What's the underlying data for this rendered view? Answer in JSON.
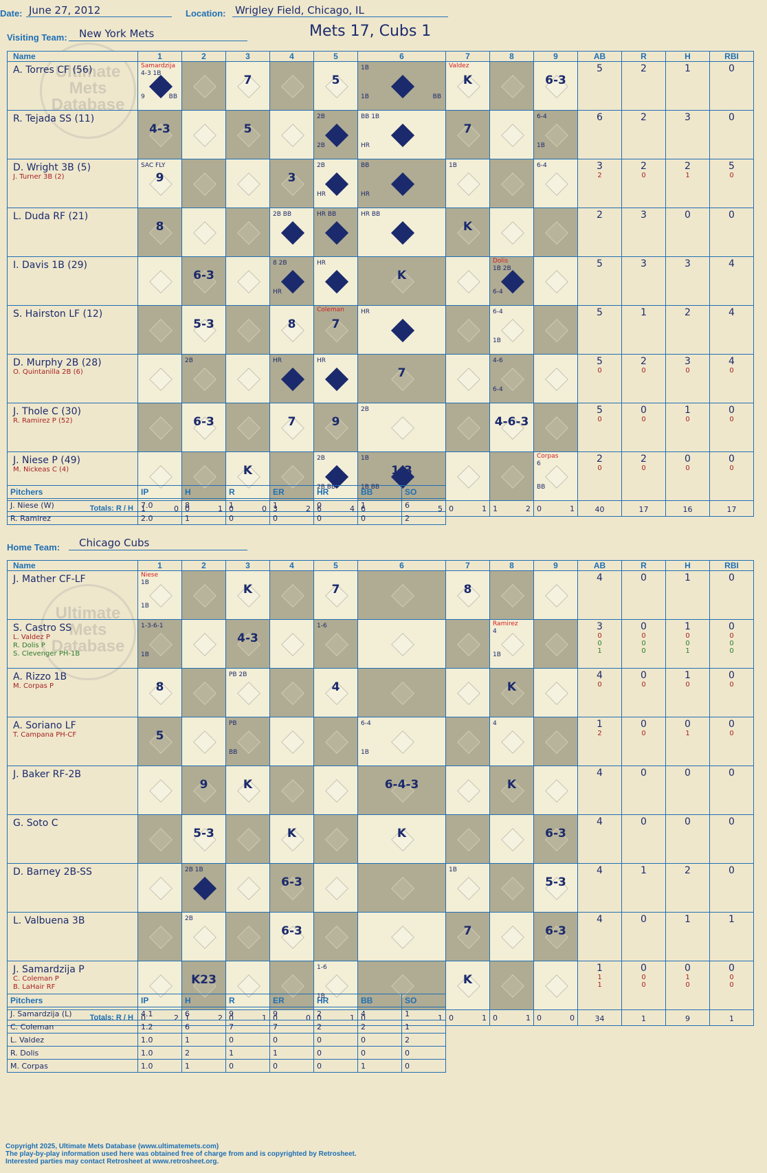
{
  "header": {
    "date_label": "Date:",
    "date": "June 27, 2012",
    "location_label": "Location:",
    "location": "Wrigley Field, Chicago, IL",
    "visiting_label": "Visiting Team:",
    "visiting_team": "New York Mets",
    "home_label": "Home Team:",
    "home_team": "Chicago Cubs",
    "title": "Mets 17, Cubs 1"
  },
  "watermark": "Ultimate Mets Database",
  "columns": {
    "name": "Name",
    "innings": [
      "1",
      "2",
      "3",
      "4",
      "5",
      "6",
      "7",
      "8",
      "9"
    ],
    "stats": [
      "AB",
      "R",
      "H",
      "RBI"
    ]
  },
  "visitors": {
    "lineup": [
      {
        "name": "A. Torres CF (56)",
        "subs": [],
        "ab": [
          "5"
        ],
        "r": [
          "2"
        ],
        "h": [
          "1"
        ],
        "rbi": [
          "0"
        ],
        "cells": [
          {
            "r": "",
            "n": [
              "4-3 1B",
              "9",
              "BB"
            ],
            "red": "Samardzija",
            "run": true
          },
          {},
          {
            "r": "7"
          },
          {},
          {
            "r": "5"
          },
          {
            "r": "",
            "n": [
              "1B",
              "1B",
              "BB"
            ],
            "run": true
          },
          {
            "r": "K",
            "red": "Valdez"
          },
          {},
          {
            "r": "6-3"
          }
        ]
      },
      {
        "name": "R. Tejada SS (11)",
        "subs": [],
        "ab": [
          "6"
        ],
        "r": [
          "2"
        ],
        "h": [
          "3"
        ],
        "rbi": [
          "0"
        ],
        "cells": [
          {
            "r": "4-3"
          },
          {},
          {
            "r": "5"
          },
          {},
          {
            "r": "",
            "n": [
              "2B",
              "2B"
            ],
            "run": true
          },
          {
            "r": "",
            "n": [
              "BB 1B",
              "HR"
            ],
            "run": true
          },
          {
            "r": "7"
          },
          {},
          {
            "r": "",
            "n": [
              "6-4",
              "1B"
            ]
          }
        ]
      },
      {
        "name": "D. Wright 3B (5)",
        "subs": [
          "J. Turner 3B (2)"
        ],
        "ab": [
          "3",
          "2"
        ],
        "r": [
          "2",
          "0"
        ],
        "h": [
          "2",
          "1"
        ],
        "rbi": [
          "5",
          "0"
        ],
        "cells": [
          {
            "r": "9",
            "n": [
              "SAC FLY"
            ]
          },
          {},
          {},
          {
            "r": "3"
          },
          {
            "r": "",
            "n": [
              "2B",
              "HR"
            ],
            "run": true
          },
          {
            "r": "",
            "n": [
              "BB",
              "HR"
            ],
            "run": true
          },
          {
            "r": "",
            "n": [
              "1B"
            ]
          },
          {},
          {
            "r": "",
            "n": [
              "6-4"
            ]
          }
        ]
      },
      {
        "name": "L. Duda RF (21)",
        "subs": [],
        "ab": [
          "2"
        ],
        "r": [
          "3"
        ],
        "h": [
          "0"
        ],
        "rbi": [
          "0"
        ],
        "cells": [
          {
            "r": "8"
          },
          {},
          {},
          {
            "r": "",
            "n": [
              "2B BB"
            ],
            "run": true
          },
          {
            "r": "",
            "n": [
              "HR BB"
            ],
            "run": true
          },
          {
            "r": "",
            "n": [
              "HR BB"
            ],
            "run": true
          },
          {
            "r": "K"
          },
          {},
          {}
        ]
      },
      {
        "name": "I. Davis 1B (29)",
        "subs": [],
        "ab": [
          "5"
        ],
        "r": [
          "3"
        ],
        "h": [
          "3"
        ],
        "rbi": [
          "4"
        ],
        "cells": [
          {},
          {
            "r": "6-3"
          },
          {},
          {
            "r": "",
            "n": [
              "8 2B",
              "HR"
            ],
            "run": true
          },
          {
            "r": "",
            "n": [
              "HR"
            ],
            "run": true
          },
          {
            "r": "K"
          },
          {},
          {
            "r": "",
            "n": [
              "1B 2B",
              "6-4"
            ],
            "red": "Dolis",
            "run": true
          },
          {}
        ]
      },
      {
        "name": "S. Hairston LF (12)",
        "subs": [],
        "ab": [
          "5"
        ],
        "r": [
          "1"
        ],
        "h": [
          "2"
        ],
        "rbi": [
          "4"
        ],
        "cells": [
          {},
          {
            "r": "5-3"
          },
          {},
          {
            "r": "8"
          },
          {
            "r": "7",
            "red": "Coleman"
          },
          {
            "r": "",
            "n": [
              "HR"
            ],
            "run": true
          },
          {},
          {
            "r": "",
            "n": [
              "6-4",
              "1B"
            ]
          },
          {}
        ]
      },
      {
        "name": "D. Murphy 2B (28)",
        "subs": [
          "O. Quintanilla 2B (6)"
        ],
        "ab": [
          "5",
          "0"
        ],
        "r": [
          "2",
          "0"
        ],
        "h": [
          "3",
          "0"
        ],
        "rbi": [
          "4",
          "0"
        ],
        "cells": [
          {},
          {
            "r": "",
            "n": [
              "2B"
            ]
          },
          {},
          {
            "r": "",
            "n": [
              "HR"
            ],
            "run": true
          },
          {
            "r": "",
            "n": [
              "HR"
            ],
            "run": true
          },
          {
            "r": "7"
          },
          {},
          {
            "r": "",
            "n": [
              "4-6",
              "6-4"
            ]
          },
          {}
        ]
      },
      {
        "name": "J. Thole C (30)",
        "subs": [
          "R. Ramirez P (52)"
        ],
        "ab": [
          "5",
          "0"
        ],
        "r": [
          "0",
          "0"
        ],
        "h": [
          "1",
          "0"
        ],
        "rbi": [
          "0",
          "0"
        ],
        "cells": [
          {},
          {
            "r": "6-3"
          },
          {},
          {
            "r": "7"
          },
          {
            "r": "9"
          },
          {
            "r": "",
            "n": [
              "2B"
            ]
          },
          {},
          {
            "r": "4-6-3"
          },
          {}
        ]
      },
      {
        "name": "J. Niese P (49)",
        "subs": [
          "M. Nickeas C (4)"
        ],
        "ab": [
          "2",
          "0"
        ],
        "r": [
          "2",
          "0"
        ],
        "h": [
          "0",
          "0"
        ],
        "rbi": [
          "0",
          "0"
        ],
        "cells": [
          {},
          {},
          {
            "r": "K"
          },
          {},
          {
            "r": "",
            "n": [
              "2B",
              "2B BB"
            ],
            "run": true
          },
          {
            "r": "1-3",
            "n": [
              "1B",
              "1B BB"
            ],
            "run": true
          },
          {},
          {},
          {
            "r": "",
            "n": [
              "6",
              "BB"
            ],
            "red": "Corpas"
          }
        ]
      }
    ],
    "totals_label": "Totals:",
    "rh": [
      "R",
      "H"
    ],
    "totals": [
      [
        "1",
        "0"
      ],
      [
        "0",
        "1"
      ],
      [
        "0",
        "0"
      ],
      [
        "3",
        "2"
      ],
      [
        "6",
        "4"
      ],
      [
        "6",
        "5"
      ],
      [
        "0",
        "1"
      ],
      [
        "1",
        "2"
      ],
      [
        "0",
        "1"
      ]
    ],
    "stat_totals": [
      "40",
      "17",
      "16",
      "17"
    ],
    "pitchers": [
      {
        "name": "J. Niese (W)",
        "ip": "7.0",
        "h": "8",
        "r": "1",
        "er": "1",
        "hr": "0",
        "bb": "1",
        "so": "6"
      },
      {
        "name": "R. Ramirez",
        "ip": "2.0",
        "h": "1",
        "r": "0",
        "er": "0",
        "hr": "0",
        "bb": "0",
        "so": "2"
      }
    ]
  },
  "home": {
    "lineup": [
      {
        "name": "J. Mather CF-LF",
        "subs": [],
        "ab": [
          "4"
        ],
        "r": [
          "0"
        ],
        "h": [
          "1"
        ],
        "rbi": [
          "0"
        ],
        "cells": [
          {
            "r": "",
            "n": [
              "1B",
              "1B"
            ],
            "red": "Niese"
          },
          {},
          {
            "r": "K"
          },
          {},
          {
            "r": "7"
          },
          {},
          {
            "r": "8"
          },
          {},
          {}
        ]
      },
      {
        "name": "S. Castro SS",
        "subs": [
          "L. Valdez P",
          "R. Dolis P",
          "S. Clevenger PH-1B"
        ],
        "ab": [
          "3",
          "0",
          "0",
          "1"
        ],
        "r": [
          "0",
          "0",
          "0",
          "0"
        ],
        "h": [
          "1",
          "0",
          "0",
          "1"
        ],
        "rbi": [
          "0",
          "0",
          "0",
          "0"
        ],
        "cells": [
          {
            "r": "",
            "n": [
              "1-3-6-1",
              "1B"
            ]
          },
          {},
          {
            "r": "4-3"
          },
          {},
          {
            "r": "",
            "n": [
              "1-6"
            ]
          },
          {},
          {},
          {
            "r": "",
            "n": [
              "4",
              "1B"
            ],
            "red": "Ramirez"
          },
          {}
        ]
      },
      {
        "name": "A. Rizzo 1B",
        "subs": [
          "M. Corpas P"
        ],
        "ab": [
          "4",
          "0"
        ],
        "r": [
          "0",
          "0"
        ],
        "h": [
          "1",
          "0"
        ],
        "rbi": [
          "0",
          "0"
        ],
        "cells": [
          {
            "r": "8"
          },
          {},
          {
            "r": "",
            "n": [
              "PB 2B"
            ]
          },
          {},
          {
            "r": "4"
          },
          {},
          {},
          {
            "r": "K"
          },
          {}
        ]
      },
      {
        "name": "A. Soriano LF",
        "subs": [
          "T. Campana PH-CF"
        ],
        "ab": [
          "1",
          "2"
        ],
        "r": [
          "0",
          "0"
        ],
        "h": [
          "0",
          "1"
        ],
        "rbi": [
          "0",
          "0"
        ],
        "cells": [
          {
            "r": "5"
          },
          {},
          {
            "r": "",
            "n": [
              "PB",
              "BB"
            ]
          },
          {},
          {},
          {
            "r": "",
            "n": [
              "6-4",
              "1B"
            ]
          },
          {},
          {
            "r": "",
            "n": [
              "4"
            ]
          },
          {}
        ]
      },
      {
        "name": "J. Baker RF-2B",
        "subs": [],
        "ab": [
          "4"
        ],
        "r": [
          "0"
        ],
        "h": [
          "0"
        ],
        "rbi": [
          "0"
        ],
        "cells": [
          {},
          {
            "r": "9"
          },
          {
            "r": "K"
          },
          {},
          {},
          {
            "r": "6-4-3"
          },
          {},
          {
            "r": "K"
          },
          {}
        ]
      },
      {
        "name": "G. Soto C",
        "subs": [],
        "ab": [
          "4"
        ],
        "r": [
          "0"
        ],
        "h": [
          "0"
        ],
        "rbi": [
          "0"
        ],
        "cells": [
          {},
          {
            "r": "5-3"
          },
          {},
          {
            "r": "K"
          },
          {},
          {
            "r": "K"
          },
          {},
          {},
          {
            "r": "6-3"
          }
        ]
      },
      {
        "name": "D. Barney 2B-SS",
        "subs": [],
        "ab": [
          "4"
        ],
        "r": [
          "1"
        ],
        "h": [
          "2"
        ],
        "rbi": [
          "0"
        ],
        "cells": [
          {},
          {
            "r": "",
            "n": [
              "2B 1B"
            ],
            "run": true
          },
          {},
          {
            "r": "6-3"
          },
          {},
          {},
          {
            "r": "",
            "n": [
              "1B"
            ]
          },
          {},
          {
            "r": "5-3"
          }
        ]
      },
      {
        "name": "L. Valbuena 3B",
        "subs": [],
        "ab": [
          "4"
        ],
        "r": [
          "0"
        ],
        "h": [
          "1"
        ],
        "rbi": [
          "1"
        ],
        "cells": [
          {},
          {
            "r": "",
            "n": [
              "2B"
            ]
          },
          {},
          {
            "r": "6-3"
          },
          {},
          {},
          {
            "r": "7"
          },
          {},
          {
            "r": "6-3"
          }
        ]
      },
      {
        "name": "J. Samardzija P",
        "subs": [
          "C. Coleman P",
          "B. LaHair RF"
        ],
        "ab": [
          "1",
          "1",
          "1"
        ],
        "r": [
          "0",
          "0",
          "0"
        ],
        "h": [
          "0",
          "1",
          "0"
        ],
        "rbi": [
          "0",
          "0",
          "0"
        ],
        "cells": [
          {},
          {
            "r": "K23"
          },
          {},
          {},
          {
            "r": "",
            "n": [
              "1-6",
              "1B"
            ]
          },
          {},
          {
            "r": "K"
          },
          {},
          {}
        ]
      }
    ],
    "totals_label": "Totals:",
    "rh": [
      "R",
      "H"
    ],
    "totals": [
      [
        "0",
        "2"
      ],
      [
        "1",
        "2"
      ],
      [
        "0",
        "1"
      ],
      [
        "0",
        "0"
      ],
      [
        "0",
        "1"
      ],
      [
        "0",
        "1"
      ],
      [
        "0",
        "1"
      ],
      [
        "0",
        "1"
      ],
      [
        "0",
        "0"
      ]
    ],
    "stat_totals": [
      "34",
      "1",
      "9",
      "1"
    ],
    "pitchers": [
      {
        "name": "J. Samardzija (L)",
        "ip": "4.1",
        "h": "6",
        "r": "9",
        "er": "9",
        "hr": "2",
        "bb": "4",
        "so": "1"
      },
      {
        "name": "C. Coleman",
        "ip": "1.2",
        "h": "6",
        "r": "7",
        "er": "7",
        "hr": "2",
        "bb": "2",
        "so": "1"
      },
      {
        "name": "L. Valdez",
        "ip": "1.0",
        "h": "1",
        "r": "0",
        "er": "0",
        "hr": "0",
        "bb": "0",
        "so": "2"
      },
      {
        "name": "R. Dolis",
        "ip": "1.0",
        "h": "2",
        "r": "1",
        "er": "1",
        "hr": "0",
        "bb": "0",
        "so": "0"
      },
      {
        "name": "M. Corpas",
        "ip": "1.0",
        "h": "1",
        "r": "0",
        "er": "0",
        "hr": "0",
        "bb": "1",
        "so": "0"
      }
    ]
  },
  "pitcher_cols": [
    "Pitchers",
    "IP",
    "H",
    "R",
    "ER",
    "HR",
    "BB",
    "SO"
  ],
  "footer": [
    "Copyright 2025, Ultimate Mets Database (www.ultimatemets.com)",
    "The play-by-play information used here was obtained free of charge from and is copyrighted by Retrosheet.",
    "Interested parties may contact Retrosheet at www.retrosheet.org."
  ]
}
